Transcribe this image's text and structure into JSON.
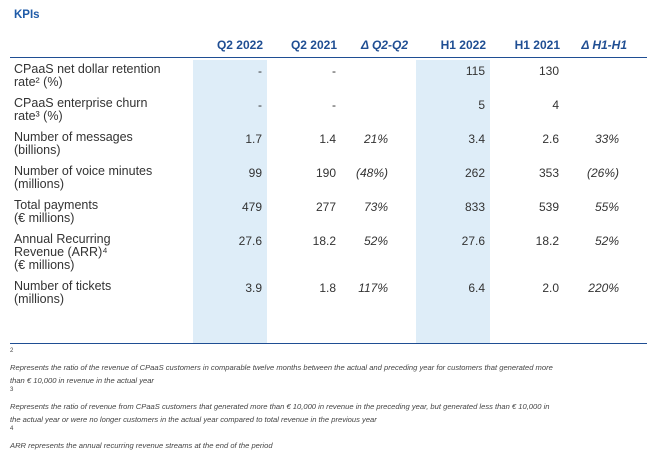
{
  "title": "KPIs",
  "columns": [
    "Q2 2022",
    "Q2 2021",
    "Δ Q2-Q2",
    "H1 2022",
    "H1 2021",
    "Δ H1-H1"
  ],
  "rows": [
    {
      "label_lines": [
        "CPaaS net dollar retention",
        "rate² (%)"
      ],
      "cells": [
        "-",
        "-",
        "",
        "115",
        "130",
        ""
      ]
    },
    {
      "label_lines": [
        "CPaaS enterprise churn",
        "rate³ (%)"
      ],
      "cells": [
        "-",
        "-",
        "",
        "5",
        "4",
        ""
      ]
    },
    {
      "label_lines": [
        "Number of messages",
        "(billions)"
      ],
      "cells": [
        "1.7",
        "1.4",
        "21%",
        "3.4",
        "2.6",
        "33%"
      ]
    },
    {
      "label_lines": [
        "Number of voice minutes",
        "(millions)"
      ],
      "cells": [
        "99",
        "190",
        "(48%)",
        "262",
        "353",
        "(26%)"
      ]
    },
    {
      "label_lines": [
        "Total payments",
        "(€ millions)"
      ],
      "cells": [
        "479",
        "277",
        "73%",
        "833",
        "539",
        "55%"
      ]
    },
    {
      "label_lines": [
        "Annual Recurring",
        "Revenue (ARR)⁴",
        "(€ millions)"
      ],
      "cells": [
        "27.6",
        "18.2",
        "52%",
        "27.6",
        "18.2",
        "52%"
      ]
    },
    {
      "label_lines": [
        "Number of tickets",
        "(millions)"
      ],
      "cells": [
        "3.9",
        "1.8",
        "117%",
        "6.4",
        "2.0",
        "220%"
      ]
    }
  ],
  "footnotes": [
    {
      "mark": "2",
      "lines": [
        "Represents the ratio of the revenue of CPaaS customers in comparable twelve months between the actual and preceding year for customers that generated more",
        "than € 10,000 in revenue in the actual year"
      ]
    },
    {
      "mark": "3",
      "lines": [
        "Represents the ratio of revenue from CPaaS customers that generated more than € 10,000 in revenue in the preceding year, but generated less than € 10,000 in",
        "the actual year or were no longer customers in the actual year compared to total revenue in the previous year"
      ]
    },
    {
      "mark": "4",
      "lines": [
        "ARR represents the annual recurring revenue streams at the end of the period"
      ]
    }
  ],
  "colors": {
    "title": "#1f5ba8",
    "header": "#1f4e93",
    "highlight_column": "#deedf8",
    "text": "#333333"
  }
}
